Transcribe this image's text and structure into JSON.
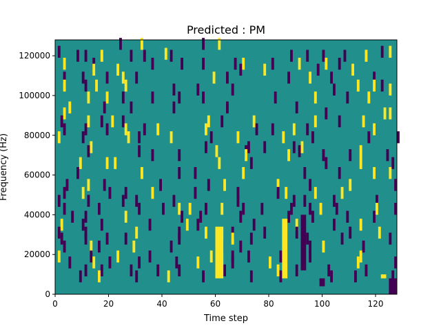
{
  "chart_data": {
    "type": "heatmap",
    "title": "Predicted : PM",
    "xlabel": "Time step",
    "ylabel": "Frequency (Hz)",
    "xlim": [
      0,
      128
    ],
    "ylim": [
      0,
      128000
    ],
    "x_ticks": [
      0,
      20,
      40,
      60,
      80,
      100,
      120
    ],
    "y_ticks": [
      0,
      20000,
      40000,
      60000,
      80000,
      100000,
      120000
    ],
    "bin_height_hz": 2000,
    "colors": {
      "background": "#21908d",
      "low": "#440154",
      "high": "#fde725"
    },
    "cells": [
      [
        32,
        127,
        "high"
      ],
      [
        61,
        127,
        "high"
      ],
      [
        24,
        127,
        "low"
      ],
      [
        55,
        127,
        "low"
      ],
      [
        1,
        123,
        "low"
      ],
      [
        122,
        123,
        "low"
      ],
      [
        125,
        123,
        "high"
      ],
      [
        41,
        122,
        "high"
      ],
      [
        8,
        121,
        "low"
      ],
      [
        11,
        121,
        "low"
      ],
      [
        17,
        121,
        "high"
      ],
      [
        28,
        121,
        "low"
      ],
      [
        33,
        121,
        "low"
      ],
      [
        43,
        121,
        "low"
      ],
      [
        88,
        121,
        "low"
      ],
      [
        94,
        121,
        "low"
      ],
      [
        100,
        121,
        "low"
      ],
      [
        108,
        121,
        "low"
      ],
      [
        116,
        121,
        "high"
      ],
      [
        3,
        117,
        "high"
      ],
      [
        14,
        117,
        "low"
      ],
      [
        36,
        117,
        "low"
      ],
      [
        47,
        117,
        "low"
      ],
      [
        55,
        117,
        "low"
      ],
      [
        67,
        117,
        "low"
      ],
      [
        70,
        117,
        "high"
      ],
      [
        81,
        117,
        "low"
      ],
      [
        91,
        117,
        "high"
      ],
      [
        101,
        117,
        "high"
      ],
      [
        106,
        117,
        "low"
      ],
      [
        14,
        114,
        "high"
      ],
      [
        23,
        114,
        "high"
      ],
      [
        69,
        114,
        "low"
      ],
      [
        78,
        114,
        "high"
      ],
      [
        98,
        114,
        "low"
      ],
      [
        111,
        114,
        "high"
      ],
      [
        3,
        110,
        "low"
      ],
      [
        10,
        110,
        "low"
      ],
      [
        19,
        110,
        "low"
      ],
      [
        25,
        110,
        "high"
      ],
      [
        30,
        110,
        "low"
      ],
      [
        59,
        110,
        "high"
      ],
      [
        64,
        110,
        "low"
      ],
      [
        87,
        110,
        "low"
      ],
      [
        95,
        110,
        "high"
      ],
      [
        103,
        110,
        "low"
      ],
      [
        119,
        110,
        "low"
      ],
      [
        3,
        106,
        "high"
      ],
      [
        11,
        106,
        "low"
      ],
      [
        15,
        106,
        "high"
      ],
      [
        26,
        106,
        "high"
      ],
      [
        113,
        106,
        "high"
      ],
      [
        119,
        106,
        "high"
      ],
      [
        122,
        106,
        "low"
      ],
      [
        125,
        104,
        "high"
      ],
      [
        44,
        104,
        "low"
      ],
      [
        53,
        104,
        "low"
      ],
      [
        66,
        104,
        "low"
      ],
      [
        104,
        104,
        "low"
      ],
      [
        12,
        100,
        "high"
      ],
      [
        19,
        100,
        "high"
      ],
      [
        25,
        100,
        "low"
      ],
      [
        36,
        100,
        "low"
      ],
      [
        46,
        100,
        "low"
      ],
      [
        55,
        100,
        "low"
      ],
      [
        82,
        100,
        "low"
      ],
      [
        97,
        100,
        "high"
      ],
      [
        109,
        100,
        "low"
      ],
      [
        117,
        100,
        "high"
      ],
      [
        5,
        95,
        "high"
      ],
      [
        18,
        95,
        "low"
      ],
      [
        28,
        95,
        "low"
      ],
      [
        44,
        95,
        "low"
      ],
      [
        64,
        95,
        "low"
      ],
      [
        90,
        95,
        "low"
      ],
      [
        3,
        92,
        "high"
      ],
      [
        101,
        92,
        "low"
      ],
      [
        123,
        92,
        "high"
      ],
      [
        125,
        92,
        "high"
      ],
      [
        2,
        88,
        "low"
      ],
      [
        12,
        88,
        "high"
      ],
      [
        17,
        88,
        "low"
      ],
      [
        21,
        88,
        "high"
      ],
      [
        25,
        88,
        "low"
      ],
      [
        57,
        88,
        "high"
      ],
      [
        62,
        88,
        "low"
      ],
      [
        74,
        88,
        "high"
      ],
      [
        97,
        88,
        "high"
      ],
      [
        106,
        88,
        "low"
      ],
      [
        115,
        88,
        "high"
      ],
      [
        3,
        84,
        "low"
      ],
      [
        11,
        84,
        "low"
      ],
      [
        19,
        84,
        "low"
      ],
      [
        26,
        84,
        "high"
      ],
      [
        33,
        84,
        "low"
      ],
      [
        38,
        84,
        "high"
      ],
      [
        56,
        84,
        "high"
      ],
      [
        75,
        84,
        "low"
      ],
      [
        81,
        84,
        "low"
      ],
      [
        89,
        84,
        "high"
      ],
      [
        94,
        84,
        "low"
      ],
      [
        119,
        84,
        "high"
      ],
      [
        1,
        80,
        "high"
      ],
      [
        10,
        80,
        "low"
      ],
      [
        27,
        80,
        "high"
      ],
      [
        31,
        80,
        "low"
      ],
      [
        43,
        80,
        "high"
      ],
      [
        58,
        80,
        "low"
      ],
      [
        68,
        80,
        "high"
      ],
      [
        85,
        80,
        "high"
      ],
      [
        96,
        80,
        "low"
      ],
      [
        117,
        80,
        "low"
      ],
      [
        128,
        80,
        "low"
      ],
      [
        13,
        75,
        "high"
      ],
      [
        56,
        75,
        "low"
      ],
      [
        72,
        75,
        "low"
      ],
      [
        78,
        75,
        "low"
      ],
      [
        89,
        75,
        "low"
      ],
      [
        92,
        75,
        "high"
      ],
      [
        12,
        73,
        "low"
      ],
      [
        31,
        73,
        "low"
      ],
      [
        60,
        73,
        "high"
      ],
      [
        71,
        73,
        "low"
      ],
      [
        91,
        73,
        "low"
      ],
      [
        114,
        73,
        "high"
      ],
      [
        36,
        71,
        "low"
      ],
      [
        46,
        71,
        "low"
      ],
      [
        71,
        71,
        "high"
      ],
      [
        87,
        71,
        "high"
      ],
      [
        100,
        71,
        "low"
      ],
      [
        110,
        71,
        "low"
      ],
      [
        124,
        71,
        "low"
      ],
      [
        9,
        67,
        "high"
      ],
      [
        19,
        67,
        "high"
      ],
      [
        22,
        67,
        "high"
      ],
      [
        61,
        67,
        "high"
      ],
      [
        73,
        67,
        "low"
      ],
      [
        101,
        67,
        "low"
      ],
      [
        114,
        67,
        "high"
      ],
      [
        126,
        67,
        "low"
      ],
      [
        8,
        62,
        "low"
      ],
      [
        32,
        62,
        "high"
      ],
      [
        46,
        62,
        "low"
      ],
      [
        52,
        62,
        "low"
      ],
      [
        70,
        62,
        "high"
      ],
      [
        93,
        62,
        "low"
      ],
      [
        106,
        62,
        "low"
      ],
      [
        119,
        62,
        "high"
      ],
      [
        125,
        62,
        "high"
      ],
      [
        4,
        56,
        "low"
      ],
      [
        12,
        56,
        "high"
      ],
      [
        18,
        56,
        "low"
      ],
      [
        39,
        56,
        "low"
      ],
      [
        57,
        56,
        "low"
      ],
      [
        63,
        56,
        "high"
      ],
      [
        83,
        56,
        "high"
      ],
      [
        95,
        56,
        "low"
      ],
      [
        110,
        56,
        "high"
      ],
      [
        127,
        56,
        "low"
      ],
      [
        3,
        52,
        "low"
      ],
      [
        10,
        52,
        "high"
      ],
      [
        20,
        52,
        "low"
      ],
      [
        26,
        52,
        "low"
      ],
      [
        36,
        52,
        "high"
      ],
      [
        52,
        52,
        "low"
      ],
      [
        68,
        52,
        "low"
      ],
      [
        83,
        52,
        "low"
      ],
      [
        86,
        52,
        "high"
      ],
      [
        97,
        52,
        "high"
      ],
      [
        107,
        52,
        "high"
      ],
      [
        1,
        48,
        "low"
      ],
      [
        12,
        48,
        "low"
      ],
      [
        25,
        48,
        "low"
      ],
      [
        30,
        48,
        "low"
      ],
      [
        44,
        48,
        "low"
      ],
      [
        68,
        48,
        "low"
      ],
      [
        89,
        48,
        "low"
      ],
      [
        93,
        48,
        "low"
      ],
      [
        104,
        48,
        "low"
      ],
      [
        120,
        48,
        "low"
      ],
      [
        3,
        44,
        "low"
      ],
      [
        16,
        44,
        "low"
      ],
      [
        31,
        44,
        "low"
      ],
      [
        40,
        44,
        "low"
      ],
      [
        46,
        44,
        "high"
      ],
      [
        50,
        44,
        "high"
      ],
      [
        56,
        44,
        "low"
      ],
      [
        62,
        44,
        "high"
      ],
      [
        70,
        44,
        "low"
      ],
      [
        77,
        44,
        "low"
      ],
      [
        88,
        44,
        "low"
      ],
      [
        95,
        44,
        "low"
      ],
      [
        99,
        44,
        "high"
      ],
      [
        105,
        44,
        "low"
      ],
      [
        120,
        44,
        "high"
      ],
      [
        127,
        44,
        "low"
      ],
      [
        6,
        40,
        "low"
      ],
      [
        11,
        40,
        "low"
      ],
      [
        26,
        40,
        "high"
      ],
      [
        47,
        40,
        "low"
      ],
      [
        54,
        40,
        "low"
      ],
      [
        69,
        40,
        "low"
      ],
      [
        87,
        40,
        "low"
      ],
      [
        96,
        40,
        "low"
      ],
      [
        109,
        40,
        "low"
      ],
      [
        119,
        40,
        "low"
      ],
      [
        2,
        36,
        "high"
      ],
      [
        10,
        36,
        "low"
      ],
      [
        17,
        36,
        "low"
      ],
      [
        35,
        36,
        "low"
      ],
      [
        49,
        36,
        "high"
      ],
      [
        53,
        36,
        "low"
      ],
      [
        74,
        36,
        "low"
      ],
      [
        90,
        36,
        "high"
      ],
      [
        104,
        36,
        "low"
      ],
      [
        114,
        36,
        "high"
      ],
      [
        1,
        32,
        "low"
      ],
      [
        11,
        32,
        "low"
      ],
      [
        30,
        32,
        "high"
      ],
      [
        46,
        32,
        "low"
      ],
      [
        56,
        32,
        "high"
      ],
      [
        66,
        32,
        "low"
      ],
      [
        78,
        32,
        "low"
      ],
      [
        90,
        32,
        "low"
      ],
      [
        110,
        32,
        "low"
      ],
      [
        121,
        32,
        "high"
      ],
      [
        2,
        29,
        "low"
      ],
      [
        11,
        29,
        "low"
      ],
      [
        19,
        29,
        "low"
      ],
      [
        26,
        29,
        "low"
      ],
      [
        46,
        29,
        "low"
      ],
      [
        66,
        29,
        "high"
      ],
      [
        73,
        29,
        "low"
      ],
      [
        94,
        29,
        "low"
      ],
      [
        107,
        29,
        "low"
      ],
      [
        125,
        29,
        "low"
      ],
      [
        3,
        25,
        "low"
      ],
      [
        13,
        25,
        "high"
      ],
      [
        16,
        25,
        "low"
      ],
      [
        29,
        25,
        "high"
      ],
      [
        43,
        25,
        "low"
      ],
      [
        62,
        25,
        "low"
      ],
      [
        69,
        25,
        "low"
      ],
      [
        95,
        25,
        "low"
      ],
      [
        100,
        25,
        "high"
      ],
      [
        115,
        25,
        "low"
      ],
      [
        1,
        20,
        "high"
      ],
      [
        13,
        20,
        "low"
      ],
      [
        23,
        20,
        "high"
      ],
      [
        35,
        20,
        "low"
      ],
      [
        58,
        20,
        "high"
      ],
      [
        66,
        20,
        "low"
      ],
      [
        72,
        20,
        "low"
      ],
      [
        84,
        20,
        "low"
      ],
      [
        95,
        20,
        "low"
      ],
      [
        114,
        20,
        "high"
      ],
      [
        5,
        17,
        "low"
      ],
      [
        14,
        17,
        "high"
      ],
      [
        20,
        17,
        "low"
      ],
      [
        31,
        17,
        "low"
      ],
      [
        45,
        17,
        "low"
      ],
      [
        53,
        17,
        "high"
      ],
      [
        66,
        17,
        "low"
      ],
      [
        80,
        17,
        "high"
      ],
      [
        92,
        17,
        "low"
      ],
      [
        113,
        17,
        "high"
      ],
      [
        127,
        17,
        "low"
      ],
      [
        11,
        13,
        "low"
      ],
      [
        17,
        13,
        "low"
      ],
      [
        28,
        13,
        "low"
      ],
      [
        38,
        13,
        "low"
      ],
      [
        46,
        13,
        "low"
      ],
      [
        63,
        13,
        "low"
      ],
      [
        83,
        13,
        "high"
      ],
      [
        90,
        13,
        "low"
      ],
      [
        102,
        13,
        "low"
      ],
      [
        116,
        13,
        "low"
      ],
      [
        9,
        10,
        "low"
      ],
      [
        16,
        10,
        "high"
      ],
      [
        30,
        10,
        "low"
      ],
      [
        42,
        10,
        "high"
      ],
      [
        55,
        10,
        "low"
      ],
      [
        73,
        10,
        "low"
      ],
      [
        84,
        10,
        "low"
      ],
      [
        103,
        10,
        "low"
      ],
      [
        112,
        10,
        "low"
      ],
      [
        126,
        10,
        "low"
      ]
    ],
    "bands": [
      [
        60,
        63,
        8,
        34,
        "high"
      ],
      [
        85,
        87,
        8,
        38,
        "high"
      ],
      [
        92,
        94,
        12,
        40,
        "low"
      ],
      [
        99,
        101,
        4,
        8,
        "low"
      ],
      [
        125,
        128,
        0,
        8,
        "low"
      ],
      [
        122,
        124,
        8,
        10,
        "high"
      ]
    ]
  }
}
